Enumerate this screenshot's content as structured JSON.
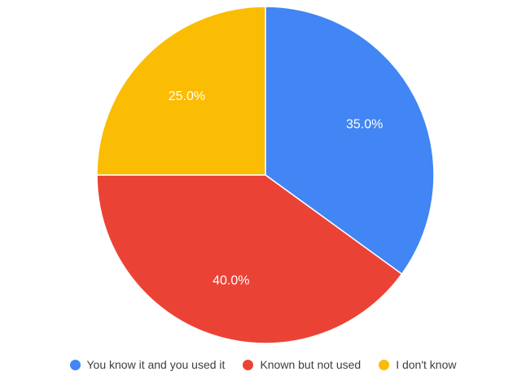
{
  "chart_data": {
    "type": "pie",
    "categories": [
      "You know it and you used it",
      "Known but not used",
      "I don't know"
    ],
    "values": [
      35.0,
      40.0,
      25.0
    ],
    "value_labels": [
      "35.0%",
      "40.0%",
      "25.0%"
    ],
    "colors": [
      "#4285f4",
      "#ea4335",
      "#fbbc04"
    ],
    "legend_position": "bottom",
    "start_angle": "12 o'clock",
    "direction": "clockwise"
  },
  "legend": {
    "items": [
      {
        "label": "You know it and you used it",
        "color": "#4285f4"
      },
      {
        "label": "Known but not used",
        "color": "#ea4335"
      },
      {
        "label": "I don't know",
        "color": "#fbbc04"
      }
    ]
  }
}
